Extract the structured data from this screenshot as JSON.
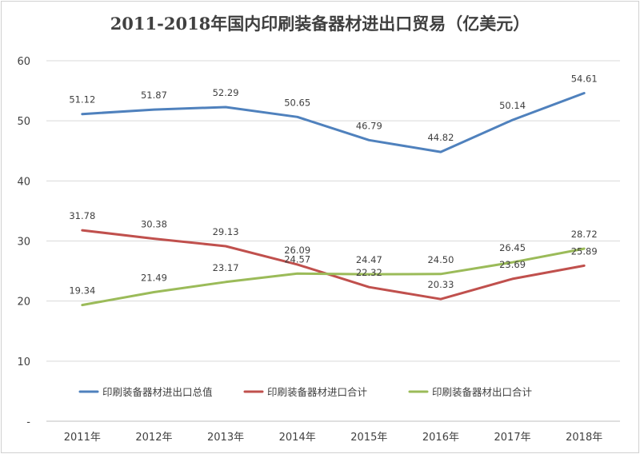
{
  "chart_data": {
    "type": "line",
    "title": "2011-2018年国内印刷装备器材进出口贸易（亿美元）",
    "xlabel": "",
    "ylabel": "",
    "categories": [
      "2011年",
      "2012年",
      "2013年",
      "2014年",
      "2015年",
      "2016年",
      "2017年",
      "2018年"
    ],
    "ylim": [
      0,
      60
    ],
    "yticks": [
      0,
      10,
      20,
      30,
      40,
      50,
      60
    ],
    "ytick_labels": [
      "-",
      "10",
      "20",
      "30",
      "40",
      "50",
      "60"
    ],
    "grid": true,
    "legend_position": "bottom-inside",
    "series": [
      {
        "name": "印刷装备器材进出口总值",
        "color": "#4f81bd",
        "values": [
          51.12,
          51.87,
          52.29,
          50.65,
          46.79,
          44.82,
          50.14,
          54.61
        ],
        "labels": [
          "51.12",
          "51.87",
          "52.29",
          "50.65",
          "46.79",
          "44.82",
          "50.14",
          "54.61"
        ]
      },
      {
        "name": "印刷装备器材进口合计",
        "color": "#c0504d",
        "values": [
          31.78,
          30.38,
          29.13,
          26.09,
          22.32,
          20.33,
          23.69,
          25.89
        ],
        "labels": [
          "31.78",
          "30.38",
          "29.13",
          "26.09",
          "22.32",
          "20.33",
          "23.69",
          "25.89"
        ]
      },
      {
        "name": "印刷装备器材出口合计",
        "color": "#9bbb59",
        "values": [
          19.34,
          21.49,
          23.17,
          24.57,
          24.47,
          24.5,
          26.45,
          28.72
        ],
        "labels": [
          "19.34",
          "21.49",
          "23.17",
          "24.57",
          "24.47",
          "24.50",
          "26.45",
          "28.72"
        ]
      }
    ]
  }
}
